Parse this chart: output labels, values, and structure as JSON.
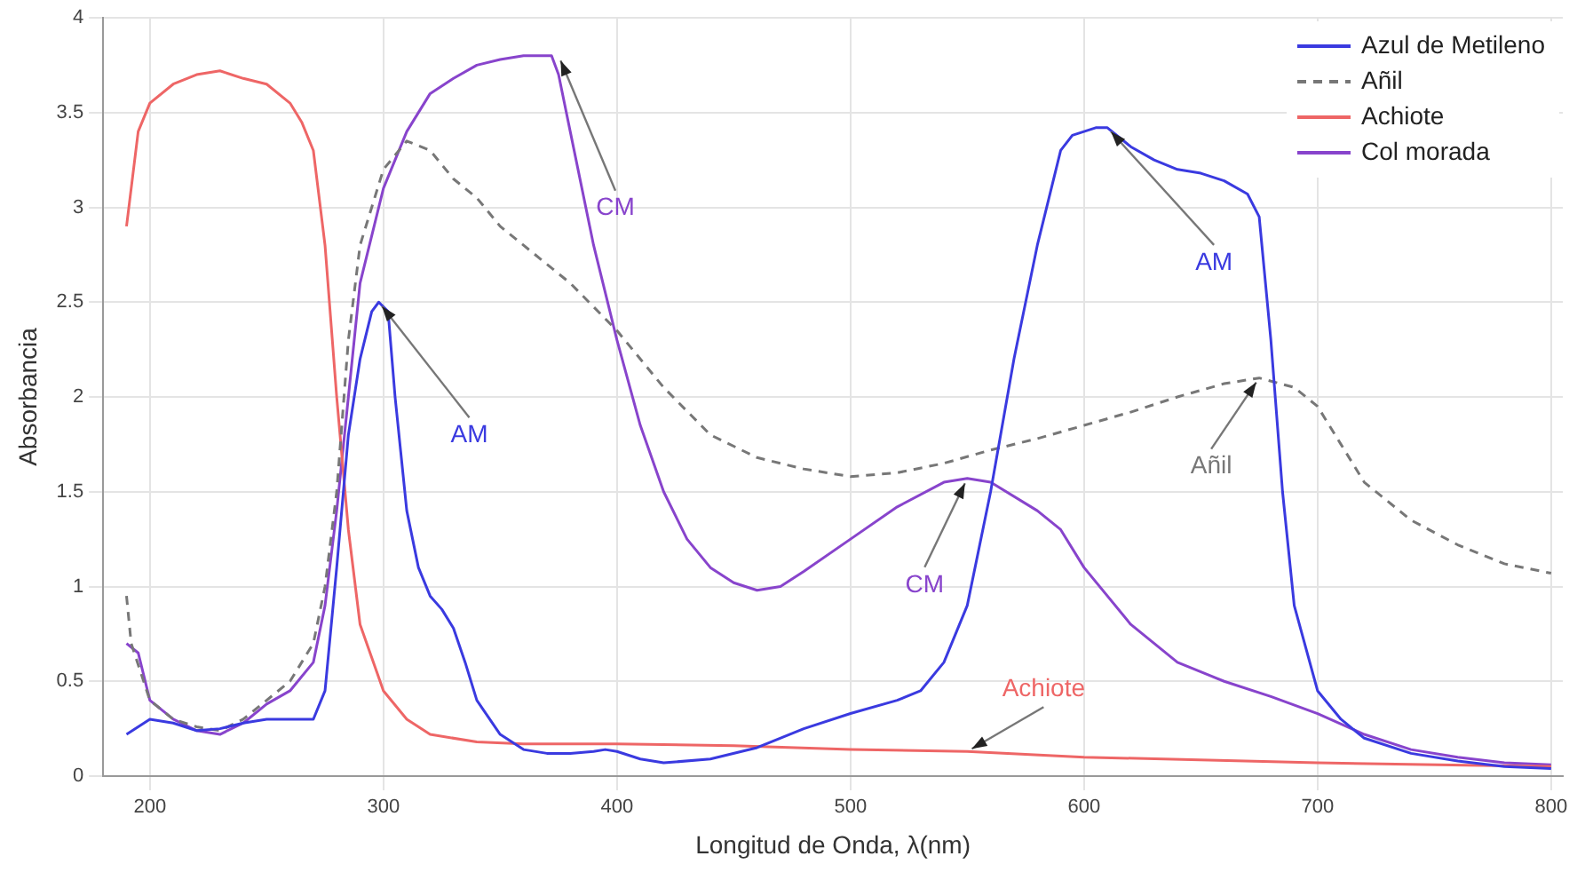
{
  "chart_data": {
    "type": "line",
    "xlabel": "Longitud de Onda, λ(nm)",
    "ylabel": "Absorbancia",
    "xlim": [
      180,
      805
    ],
    "xticks": [
      200,
      300,
      400,
      500,
      600,
      700,
      800
    ],
    "ylim": [
      0,
      4
    ],
    "yticks": [
      0,
      0.5,
      1,
      1.5,
      2,
      2.5,
      3,
      3.5,
      4
    ],
    "grid": true,
    "legend": "top right",
    "marker": "none",
    "series": [
      {
        "name": "Azul de Metileno",
        "color": "#3a3ae0",
        "line_style": "solid",
        "x": [
          190,
          200,
          210,
          220,
          230,
          240,
          250,
          260,
          270,
          275,
          280,
          285,
          290,
          295,
          298,
          302,
          305,
          310,
          315,
          320,
          325,
          330,
          335,
          340,
          350,
          360,
          370,
          380,
          390,
          395,
          400,
          410,
          420,
          440,
          460,
          480,
          500,
          520,
          530,
          540,
          550,
          560,
          570,
          580,
          590,
          595,
          605,
          610,
          620,
          630,
          640,
          650,
          660,
          670,
          675,
          680,
          685,
          690,
          700,
          710,
          720,
          740,
          760,
          780,
          800
        ],
        "values": [
          0.22,
          0.3,
          0.28,
          0.24,
          0.25,
          0.28,
          0.3,
          0.3,
          0.3,
          0.45,
          1.1,
          1.8,
          2.2,
          2.45,
          2.5,
          2.45,
          2.0,
          1.4,
          1.1,
          0.95,
          0.88,
          0.78,
          0.6,
          0.4,
          0.22,
          0.14,
          0.12,
          0.12,
          0.13,
          0.14,
          0.13,
          0.09,
          0.07,
          0.09,
          0.15,
          0.25,
          0.33,
          0.4,
          0.45,
          0.6,
          0.9,
          1.5,
          2.2,
          2.8,
          3.3,
          3.38,
          3.42,
          3.42,
          3.32,
          3.25,
          3.2,
          3.18,
          3.14,
          3.07,
          2.95,
          2.3,
          1.5,
          0.9,
          0.45,
          0.3,
          0.2,
          0.12,
          0.08,
          0.05,
          0.04
        ]
      },
      {
        "name": "Añil",
        "color": "#777777",
        "line_style": "dashed",
        "x": [
          190,
          192,
          200,
          210,
          220,
          230,
          240,
          250,
          260,
          270,
          275,
          280,
          285,
          290,
          300,
          310,
          320,
          330,
          340,
          350,
          360,
          380,
          400,
          420,
          440,
          460,
          480,
          500,
          520,
          540,
          560,
          580,
          600,
          620,
          640,
          660,
          675,
          690,
          700,
          710,
          720,
          740,
          760,
          780,
          800
        ],
        "values": [
          0.95,
          0.7,
          0.4,
          0.3,
          0.26,
          0.24,
          0.3,
          0.4,
          0.5,
          0.7,
          1.0,
          1.5,
          2.3,
          2.8,
          3.2,
          3.35,
          3.3,
          3.15,
          3.05,
          2.9,
          2.8,
          2.6,
          2.35,
          2.05,
          1.8,
          1.68,
          1.62,
          1.58,
          1.6,
          1.65,
          1.72,
          1.78,
          1.85,
          1.92,
          2.0,
          2.07,
          2.1,
          2.05,
          1.95,
          1.75,
          1.55,
          1.35,
          1.22,
          1.12,
          1.07
        ]
      },
      {
        "name": "Achiote",
        "color": "#ee6666",
        "line_style": "solid",
        "x": [
          190,
          195,
          200,
          210,
          220,
          230,
          240,
          250,
          260,
          265,
          270,
          275,
          280,
          285,
          290,
          300,
          310,
          320,
          340,
          360,
          400,
          450,
          500,
          550,
          600,
          700,
          800
        ],
        "values": [
          2.9,
          3.4,
          3.55,
          3.65,
          3.7,
          3.72,
          3.68,
          3.65,
          3.55,
          3.45,
          3.3,
          2.8,
          2.0,
          1.3,
          0.8,
          0.45,
          0.3,
          0.22,
          0.18,
          0.17,
          0.17,
          0.16,
          0.14,
          0.13,
          0.1,
          0.07,
          0.05
        ]
      },
      {
        "name": "Col morada",
        "color": "#8844cc",
        "line_style": "solid",
        "x": [
          190,
          195,
          200,
          210,
          220,
          230,
          240,
          250,
          260,
          270,
          275,
          280,
          285,
          290,
          300,
          310,
          320,
          330,
          340,
          350,
          360,
          372,
          375,
          380,
          390,
          400,
          410,
          420,
          430,
          440,
          450,
          460,
          470,
          480,
          500,
          520,
          540,
          550,
          560,
          580,
          590,
          600,
          620,
          640,
          660,
          680,
          700,
          720,
          740,
          760,
          780,
          800
        ],
        "values": [
          0.7,
          0.65,
          0.4,
          0.3,
          0.24,
          0.22,
          0.28,
          0.38,
          0.45,
          0.6,
          0.9,
          1.4,
          2.0,
          2.6,
          3.1,
          3.4,
          3.6,
          3.68,
          3.75,
          3.78,
          3.8,
          3.8,
          3.7,
          3.4,
          2.8,
          2.3,
          1.85,
          1.5,
          1.25,
          1.1,
          1.02,
          0.98,
          1.0,
          1.08,
          1.25,
          1.42,
          1.55,
          1.57,
          1.55,
          1.4,
          1.3,
          1.1,
          0.8,
          0.6,
          0.5,
          0.42,
          0.33,
          0.22,
          0.14,
          0.1,
          0.07,
          0.06
        ]
      }
    ],
    "annotations": [
      {
        "text": "CM",
        "x": 375,
        "y": 3.8
      },
      {
        "text": "AM",
        "x": 298,
        "y": 2.5
      },
      {
        "text": "AM",
        "x": 610,
        "y": 3.42
      },
      {
        "text": "Añil",
        "x": 675,
        "y": 2.1
      },
      {
        "text": "CM",
        "x": 550,
        "y": 1.57
      },
      {
        "text": "Achiote",
        "x": 550,
        "y": 0.13
      }
    ]
  }
}
